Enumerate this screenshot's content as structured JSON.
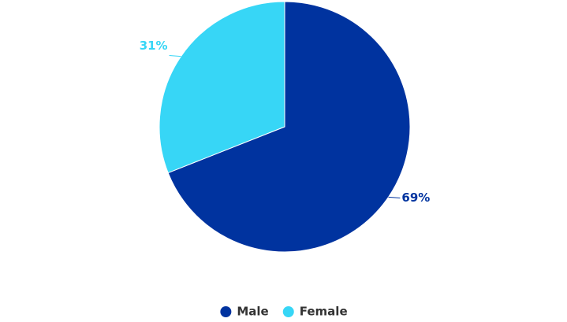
{
  "chart_data": {
    "type": "pie",
    "categories": [
      "Male",
      "Female"
    ],
    "values": [
      69,
      31
    ],
    "value_labels": [
      "69%",
      "31%"
    ],
    "colors": [
      "#00339f",
      "#37d6f6"
    ],
    "legend": "bottom"
  }
}
